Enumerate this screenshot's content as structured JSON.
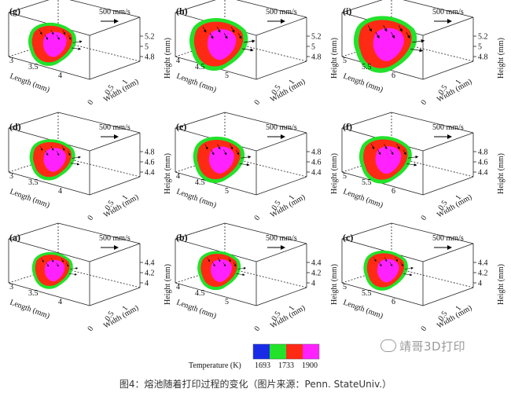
{
  "panels": [
    {
      "id": "g",
      "label": "(g)",
      "speed": "500 mm/s",
      "length_ticks": [
        "3",
        "3.5",
        "4"
      ],
      "width_ticks": [
        "0",
        "0.5",
        "1"
      ],
      "height_ticks": [
        "4.8",
        "5",
        "5.2"
      ],
      "pool_scale": 0.82
    },
    {
      "id": "h",
      "label": "(h)",
      "speed": "500 mm/s",
      "length_ticks": [
        "4",
        "4.5",
        "5"
      ],
      "width_ticks": [
        "0",
        "0.5",
        "1"
      ],
      "height_ticks": [
        "4.8",
        "5",
        "5.2"
      ],
      "pool_scale": 1.0
    },
    {
      "id": "i",
      "label": "(i)",
      "speed": "500 mm/s",
      "length_ticks": [
        "5",
        "5.5",
        "6"
      ],
      "width_ticks": [
        "0",
        "0.5",
        "1"
      ],
      "height_ticks": [
        "4.8",
        "5",
        "5.2"
      ],
      "pool_scale": 1.08
    },
    {
      "id": "d",
      "label": "(d)",
      "speed": "500 mm/s",
      "length_ticks": [
        "3",
        "3.5",
        "4"
      ],
      "width_ticks": [
        "0",
        "0.5",
        "1"
      ],
      "height_ticks": [
        "4.4",
        "4.6",
        "4.8"
      ],
      "pool_scale": 0.78
    },
    {
      "id": "e",
      "label": "(e)",
      "speed": "500 mm/s",
      "length_ticks": [
        "4",
        "4.5",
        "5"
      ],
      "width_ticks": [
        "0",
        "0.5",
        "1"
      ],
      "height_ticks": [
        "4.4",
        "4.6",
        "4.8"
      ],
      "pool_scale": 0.88
    },
    {
      "id": "f",
      "label": "(f)",
      "speed": "500 mm/s",
      "length_ticks": [
        "5",
        "5.5",
        "6"
      ],
      "width_ticks": [
        "0",
        "0.5",
        "1"
      ],
      "height_ticks": [
        "4.4",
        "4.6",
        "4.8"
      ],
      "pool_scale": 0.9
    },
    {
      "id": "a",
      "label": "(a)",
      "speed": "500 mm/s",
      "length_ticks": [
        "3",
        "3.5",
        "4"
      ],
      "width_ticks": [
        "0",
        "0.5",
        "1"
      ],
      "height_ticks": [
        "4",
        "4.2",
        "4.4"
      ],
      "pool_scale": 0.7
    },
    {
      "id": "b",
      "label": "(b)",
      "speed": "500 mm/s",
      "length_ticks": [
        "4",
        "4.5",
        "5"
      ],
      "width_ticks": [
        "0",
        "0.5",
        "1"
      ],
      "height_ticks": [
        "4",
        "4.2",
        "4.4"
      ],
      "pool_scale": 0.74
    },
    {
      "id": "c",
      "label": "(c)",
      "speed": "500 mm/s",
      "length_ticks": [
        "5",
        "5.5",
        "6"
      ],
      "width_ticks": [
        "0",
        "0.5",
        "1"
      ],
      "height_ticks": [
        "4",
        "4.2",
        "4.4"
      ],
      "pool_scale": 0.76
    }
  ],
  "axes": {
    "length": "Length (mm)",
    "width": "Width (mm)",
    "height": "Height (mm)"
  },
  "colorbar": {
    "label": "Temperature (K)",
    "ticks": [
      "1693",
      "1733",
      "1900"
    ],
    "colors": [
      "#1a2be8",
      "#22e22a",
      "#ff2a14",
      "#ff22ff"
    ]
  },
  "watermark": "靖哥3D打印",
  "caption": "图4：熔池随着打印过程的变化（图片来源：Penn. StateUniv.）"
}
